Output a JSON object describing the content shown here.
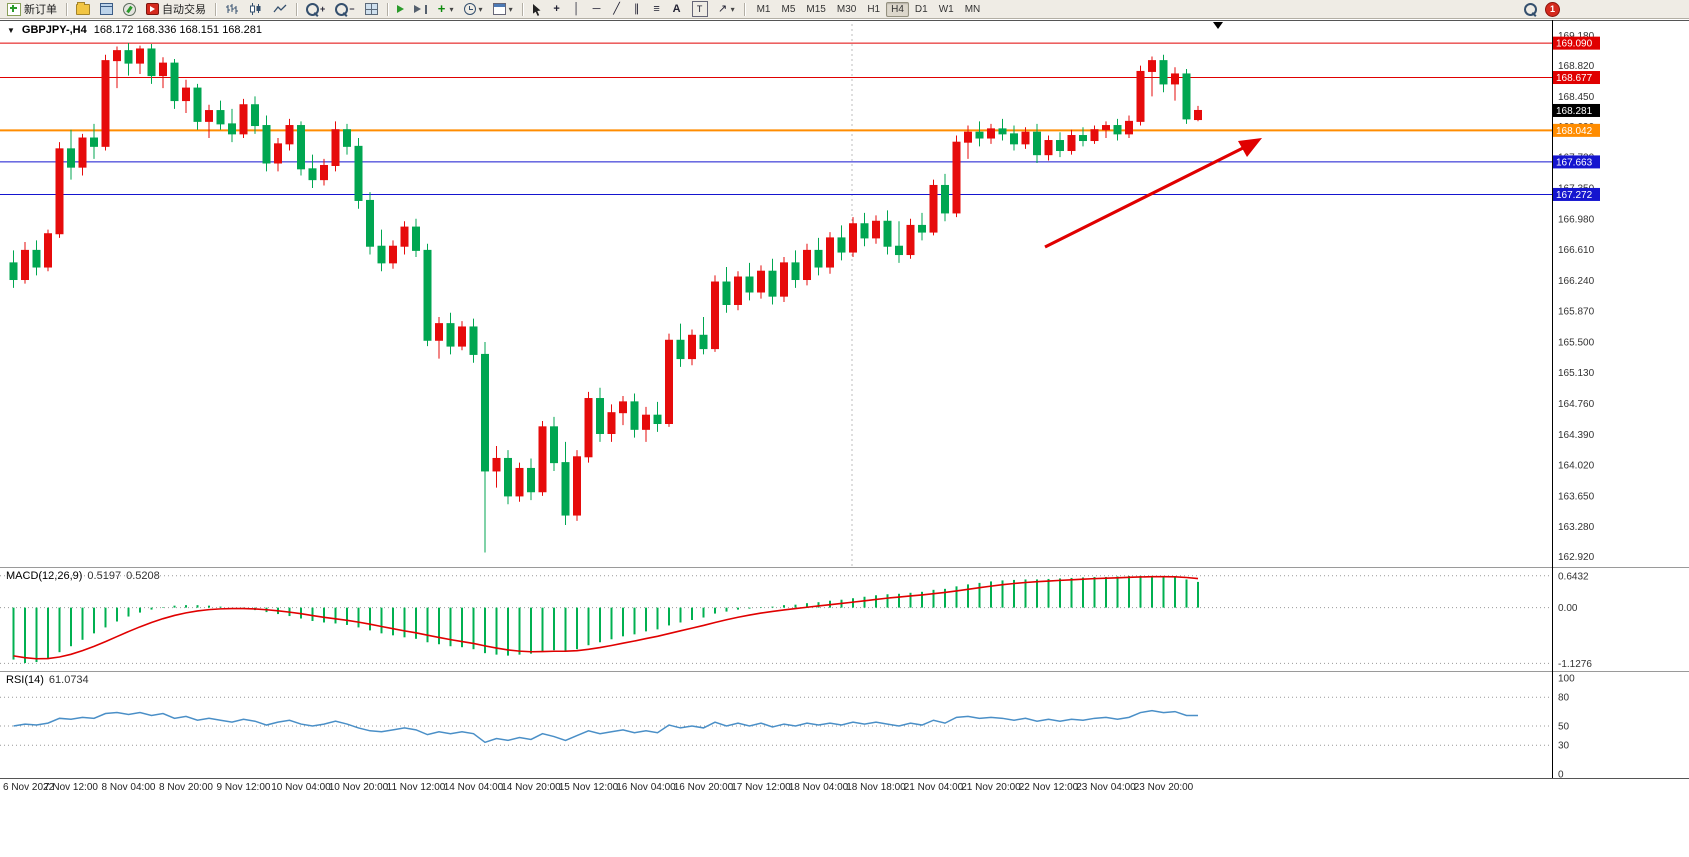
{
  "toolbar": {
    "new_order_label": "新订单",
    "auto_trading_label": "自动交易",
    "timeframes": [
      "M1",
      "M5",
      "M15",
      "M30",
      "H1",
      "H4",
      "D1",
      "W1",
      "MN"
    ],
    "active_timeframe": "H4",
    "notification_count": "1",
    "glyphs": {
      "caret": "▾",
      "title_caret": "▼",
      "crosshair": "+",
      "vline": "│",
      "hline": "─",
      "trendline": "╱",
      "channel": "∥",
      "fibo": "≡",
      "text_tool": "A",
      "label_tool": "T",
      "arrows_tool": "↗",
      "indicators_plus": "+",
      "zoom_in": "+",
      "zoom_out": "−"
    }
  },
  "chart": {
    "symbol_title": "GBPJPY-,H4",
    "ohlc_text": "168.172 168.336 168.151 168.281",
    "current_price": "168.281"
  },
  "price_axis": {
    "labels": [
      "169.180",
      "168.820",
      "168.450",
      "168.090",
      "167.720",
      "167.350",
      "166.980",
      "166.610",
      "166.240",
      "165.870",
      "165.500",
      "165.130",
      "164.760",
      "164.390",
      "164.020",
      "163.650",
      "163.280",
      "162.920"
    ]
  },
  "levels": [
    {
      "value": "169.090",
      "color": "#e00000",
      "width": 1
    },
    {
      "value": "168.677",
      "color": "#e00000",
      "width": 1
    },
    {
      "value": "168.042",
      "color": "#ff8c00",
      "width": 2
    },
    {
      "value": "167.663",
      "color": "#1515cf",
      "width": 1
    },
    {
      "value": "167.272",
      "color": "#1515cf",
      "width": 1
    }
  ],
  "macd": {
    "label": "MACD(12,26,9)",
    "value_main": "0.5197",
    "value_signal": "0.5208",
    "axis": [
      "0.6432",
      "0.00",
      "-1.1276"
    ],
    "histogram": [
      -1.05,
      -1.12,
      -1.1,
      -1.02,
      -0.9,
      -0.78,
      -0.65,
      -0.52,
      -0.4,
      -0.28,
      -0.18,
      -0.1,
      -0.04,
      0.01,
      0.04,
      0.05,
      0.05,
      0.04,
      0.02,
      0.0,
      -0.02,
      -0.05,
      -0.09,
      -0.13,
      -0.17,
      -0.22,
      -0.27,
      -0.3,
      -0.32,
      -0.35,
      -0.4,
      -0.46,
      -0.52,
      -0.56,
      -0.6,
      -0.63,
      -0.7,
      -0.74,
      -0.78,
      -0.8,
      -0.84,
      -0.92,
      -0.95,
      -0.97,
      -0.95,
      -0.93,
      -0.88,
      -0.86,
      -0.88,
      -0.84,
      -0.76,
      -0.7,
      -0.64,
      -0.58,
      -0.54,
      -0.48,
      -0.44,
      -0.36,
      -0.3,
      -0.25,
      -0.2,
      -0.12,
      -0.08,
      -0.04,
      -0.02,
      0.01,
      0.02,
      0.05,
      0.06,
      0.09,
      0.11,
      0.14,
      0.16,
      0.19,
      0.22,
      0.25,
      0.27,
      0.28,
      0.3,
      0.32,
      0.36,
      0.38,
      0.43,
      0.47,
      0.5,
      0.53,
      0.55,
      0.56,
      0.57,
      0.57,
      0.58,
      0.59,
      0.6,
      0.61,
      0.62,
      0.62,
      0.63,
      0.64,
      0.643,
      0.64,
      0.63,
      0.61,
      0.57,
      0.52
    ]
  },
  "rsi": {
    "label": "RSI(14)",
    "value": "61.0734",
    "axis": [
      "100",
      "80",
      "50",
      "30",
      "0"
    ],
    "values": [
      50,
      52,
      51,
      53,
      58,
      57,
      59,
      58,
      63,
      64,
      62,
      64,
      61,
      63,
      58,
      60,
      56,
      58,
      56,
      54,
      57,
      55,
      51,
      54,
      56,
      52,
      50,
      52,
      55,
      52,
      48,
      45,
      44,
      46,
      48,
      46,
      41,
      44,
      42,
      44,
      42,
      33,
      37,
      35,
      38,
      36,
      42,
      39,
      35,
      40,
      45,
      42,
      44,
      46,
      43,
      45,
      43,
      51,
      48,
      50,
      48,
      54,
      50,
      53,
      50,
      53,
      49,
      52,
      50,
      53,
      51,
      53,
      51,
      54,
      52,
      54,
      52,
      50,
      53,
      51,
      56,
      53,
      59,
      60,
      58,
      59,
      58,
      56,
      58,
      55,
      57,
      55,
      57,
      56,
      58,
      59,
      57,
      59,
      64,
      66,
      64,
      65,
      61,
      61
    ]
  },
  "chart_data": {
    "type": "candlestick",
    "symbol": "GBPJPY-",
    "timeframe": "H4",
    "ylim": [
      162.88,
      169.32
    ],
    "x_label_step": 5,
    "x_labels": [
      "6 Nov 2022",
      "7 Nov 12:00",
      "8 Nov 04:00",
      "8 Nov 20:00",
      "9 Nov 12:00",
      "10 Nov 04:00",
      "10 Nov 20:00",
      "11 Nov 12:00",
      "14 Nov 04:00",
      "14 Nov 20:00",
      "15 Nov 12:00",
      "16 Nov 04:00",
      "16 Nov 20:00",
      "17 Nov 12:00",
      "18 Nov 04:00",
      "18 Nov 18:00",
      "21 Nov 04:00",
      "21 Nov 20:00",
      "22 Nov 12:00",
      "23 Nov 04:00",
      "23 Nov 20:00"
    ],
    "candles": [
      [
        166.45,
        166.6,
        166.15,
        166.25
      ],
      [
        166.25,
        166.7,
        166.2,
        166.6
      ],
      [
        166.6,
        166.72,
        166.3,
        166.4
      ],
      [
        166.4,
        166.85,
        166.35,
        166.8
      ],
      [
        166.8,
        167.9,
        166.75,
        167.82
      ],
      [
        167.82,
        168.05,
        167.45,
        167.6
      ],
      [
        167.6,
        168.0,
        167.5,
        167.95
      ],
      [
        167.95,
        168.12,
        167.7,
        167.85
      ],
      [
        167.85,
        168.95,
        167.8,
        168.88
      ],
      [
        168.88,
        169.05,
        168.55,
        169.0
      ],
      [
        169.0,
        169.09,
        168.7,
        168.85
      ],
      [
        168.85,
        169.06,
        168.72,
        169.02
      ],
      [
        169.02,
        169.08,
        168.6,
        168.7
      ],
      [
        168.7,
        168.92,
        168.55,
        168.85
      ],
      [
        168.85,
        168.9,
        168.3,
        168.4
      ],
      [
        168.4,
        168.65,
        168.25,
        168.55
      ],
      [
        168.55,
        168.6,
        168.05,
        168.15
      ],
      [
        168.15,
        168.35,
        167.95,
        168.28
      ],
      [
        168.28,
        168.4,
        168.05,
        168.12
      ],
      [
        168.12,
        168.3,
        167.9,
        168.0
      ],
      [
        168.0,
        168.42,
        167.95,
        168.35
      ],
      [
        168.35,
        168.45,
        168.0,
        168.1
      ],
      [
        168.1,
        168.22,
        167.55,
        167.65
      ],
      [
        167.65,
        167.95,
        167.55,
        167.88
      ],
      [
        167.88,
        168.18,
        167.8,
        168.1
      ],
      [
        168.1,
        168.15,
        167.5,
        167.58
      ],
      [
        167.58,
        167.75,
        167.35,
        167.45
      ],
      [
        167.45,
        167.7,
        167.38,
        167.62
      ],
      [
        167.62,
        168.15,
        167.55,
        168.05
      ],
      [
        168.05,
        168.12,
        167.75,
        167.85
      ],
      [
        167.85,
        167.95,
        167.1,
        167.2
      ],
      [
        167.2,
        167.3,
        166.55,
        166.65
      ],
      [
        166.65,
        166.85,
        166.35,
        166.45
      ],
      [
        166.45,
        166.72,
        166.38,
        166.65
      ],
      [
        166.65,
        166.95,
        166.55,
        166.88
      ],
      [
        166.88,
        166.98,
        166.52,
        166.6
      ],
      [
        166.6,
        166.68,
        165.45,
        165.52
      ],
      [
        165.52,
        165.8,
        165.3,
        165.72
      ],
      [
        165.72,
        165.85,
        165.35,
        165.45
      ],
      [
        165.45,
        165.75,
        165.4,
        165.68
      ],
      [
        165.68,
        165.78,
        165.25,
        165.35
      ],
      [
        165.35,
        165.5,
        162.97,
        163.95
      ],
      [
        163.95,
        164.25,
        163.75,
        164.1
      ],
      [
        164.1,
        164.2,
        163.55,
        163.65
      ],
      [
        163.65,
        164.05,
        163.58,
        163.98
      ],
      [
        163.98,
        164.1,
        163.6,
        163.7
      ],
      [
        163.7,
        164.55,
        163.65,
        164.48
      ],
      [
        164.48,
        164.6,
        163.95,
        164.05
      ],
      [
        164.05,
        164.3,
        163.3,
        163.42
      ],
      [
        163.42,
        164.2,
        163.35,
        164.12
      ],
      [
        164.12,
        164.9,
        164.05,
        164.82
      ],
      [
        164.82,
        164.95,
        164.3,
        164.4
      ],
      [
        164.4,
        164.75,
        164.3,
        164.65
      ],
      [
        164.65,
        164.85,
        164.5,
        164.78
      ],
      [
        164.78,
        164.88,
        164.35,
        164.45
      ],
      [
        164.45,
        164.72,
        164.3,
        164.62
      ],
      [
        164.62,
        164.78,
        164.42,
        164.52
      ],
      [
        164.52,
        165.6,
        164.48,
        165.52
      ],
      [
        165.52,
        165.72,
        165.2,
        165.3
      ],
      [
        165.3,
        165.65,
        165.22,
        165.58
      ],
      [
        165.58,
        165.8,
        165.35,
        165.42
      ],
      [
        165.42,
        166.3,
        165.38,
        166.22
      ],
      [
        166.22,
        166.4,
        165.85,
        165.95
      ],
      [
        165.95,
        166.35,
        165.88,
        166.28
      ],
      [
        166.28,
        166.45,
        166.0,
        166.1
      ],
      [
        166.1,
        166.42,
        166.02,
        166.35
      ],
      [
        166.35,
        166.5,
        165.95,
        166.05
      ],
      [
        166.05,
        166.52,
        165.98,
        166.45
      ],
      [
        166.45,
        166.6,
        166.15,
        166.25
      ],
      [
        166.25,
        166.68,
        166.18,
        166.6
      ],
      [
        166.6,
        166.75,
        166.3,
        166.4
      ],
      [
        166.4,
        166.82,
        166.32,
        166.75
      ],
      [
        166.75,
        166.9,
        166.48,
        166.58
      ],
      [
        166.58,
        167.0,
        166.52,
        166.92
      ],
      [
        166.92,
        167.05,
        166.65,
        166.75
      ],
      [
        166.75,
        167.02,
        166.68,
        166.95
      ],
      [
        166.95,
        167.08,
        166.55,
        166.65
      ],
      [
        166.65,
        166.95,
        166.45,
        166.55
      ],
      [
        166.55,
        166.98,
        166.5,
        166.9
      ],
      [
        166.9,
        167.05,
        166.72,
        166.82
      ],
      [
        166.82,
        167.45,
        166.78,
        167.38
      ],
      [
        167.38,
        167.52,
        166.95,
        167.05
      ],
      [
        167.05,
        167.98,
        167.0,
        167.9
      ],
      [
        167.9,
        168.1,
        167.7,
        168.02
      ],
      [
        168.02,
        168.15,
        167.85,
        167.95
      ],
      [
        167.95,
        168.12,
        167.88,
        168.06
      ],
      [
        168.06,
        168.18,
        167.92,
        168.0
      ],
      [
        168.0,
        168.1,
        167.8,
        167.88
      ],
      [
        167.88,
        168.08,
        167.82,
        168.02
      ],
      [
        168.02,
        168.12,
        167.65,
        167.75
      ],
      [
        167.75,
        167.98,
        167.68,
        167.92
      ],
      [
        167.92,
        168.02,
        167.72,
        167.8
      ],
      [
        167.8,
        168.05,
        167.75,
        167.98
      ],
      [
        167.98,
        168.08,
        167.85,
        167.92
      ],
      [
        167.92,
        168.1,
        167.88,
        168.05
      ],
      [
        168.05,
        168.15,
        167.95,
        168.1
      ],
      [
        168.1,
        168.18,
        167.92,
        168.0
      ],
      [
        168.0,
        168.22,
        167.95,
        168.15
      ],
      [
        168.15,
        168.82,
        168.1,
        168.75
      ],
      [
        168.75,
        168.93,
        168.45,
        168.88
      ],
      [
        168.88,
        168.95,
        168.5,
        168.6
      ],
      [
        168.6,
        168.8,
        168.4,
        168.72
      ],
      [
        168.72,
        168.78,
        168.12,
        168.18
      ],
      [
        168.172,
        168.336,
        168.151,
        168.281
      ]
    ]
  },
  "colors": {
    "bull": "#e60b0b",
    "bear": "#00a651",
    "macd_hist": "#00b050",
    "macd_signal": "#e00000",
    "rsi_line": "#4a8fc7",
    "arrow": "#e00000",
    "current_price_bg": "#000000"
  }
}
